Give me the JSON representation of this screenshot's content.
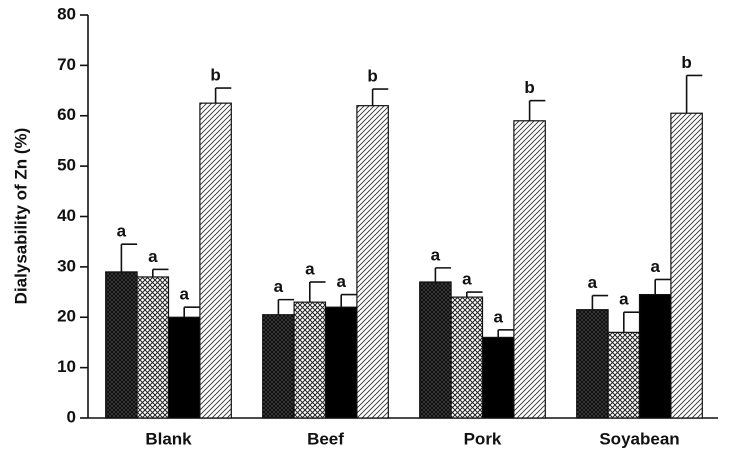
{
  "chart_data": {
    "type": "bar",
    "ylabel": "Dialysability of Zn (%)",
    "categories": [
      "Blank",
      "Beef",
      "Pork",
      "Soyabean"
    ],
    "series": [
      {
        "color": "#222222",
        "values": [
          29,
          20.5,
          27,
          21.5
        ],
        "errors": [
          5.5,
          3,
          2.8,
          2.8
        ],
        "letters": [
          "a",
          "a",
          "a",
          "a"
        ]
      },
      {
        "color": "#777777",
        "values": [
          28,
          23,
          24,
          17
        ],
        "errors": [
          1.5,
          4,
          1,
          4
        ],
        "letters": [
          "a",
          "a",
          "a",
          "a"
        ]
      },
      {
        "color": "#000000",
        "values": [
          20,
          22,
          16,
          24.5
        ],
        "errors": [
          2,
          2.5,
          1.5,
          3
        ],
        "letters": [
          "a",
          "a",
          "a",
          "a"
        ]
      },
      {
        "color": "#444444",
        "values": [
          62.5,
          62,
          59,
          60.5
        ],
        "errors": [
          3,
          3.3,
          4,
          7.5
        ],
        "letters": [
          "b",
          "b",
          "b",
          "b"
        ]
      }
    ],
    "ylim": [
      0,
      80
    ],
    "yticks": [
      0,
      10,
      20,
      30,
      40,
      50,
      60,
      70,
      80
    ]
  }
}
